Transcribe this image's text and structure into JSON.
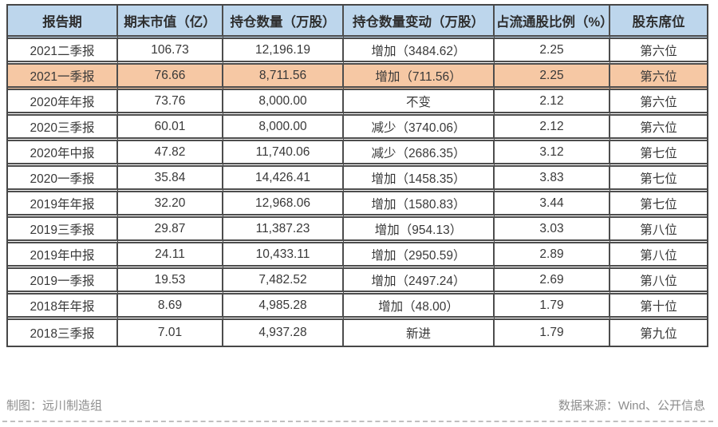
{
  "chart_data": {
    "type": "table",
    "columns": [
      "报告期",
      "期末市值（亿）",
      "持仓数量（万股）",
      "持仓数量变动（万股）",
      "占流通股比例（%）",
      "股东席位"
    ],
    "rows": [
      [
        "2021二季报",
        "106.73",
        "12,196.19",
        "增加（3484.62）",
        "2.25",
        "第六位"
      ],
      [
        "2021一季报",
        "76.66",
        "8,711.56",
        "增加（711.56）",
        "2.25",
        "第六位"
      ],
      [
        "2020年年报",
        "73.76",
        "8,000.00",
        "不变",
        "2.12",
        "第六位"
      ],
      [
        "2020三季报",
        "60.01",
        "8,000.00",
        "减少（3740.06）",
        "2.12",
        "第六位"
      ],
      [
        "2020年中报",
        "47.82",
        "11,740.06",
        "减少（2686.35）",
        "3.12",
        "第七位"
      ],
      [
        "2020一季报",
        "35.84",
        "14,426.41",
        "增加（1458.35）",
        "3.83",
        "第七位"
      ],
      [
        "2019年年报",
        "32.20",
        "12,968.06",
        "增加（1580.83）",
        "3.44",
        "第七位"
      ],
      [
        "2019三季报",
        "29.87",
        "11,387.23",
        "增加（954.13）",
        "3.03",
        "第八位"
      ],
      [
        "2019年中报",
        "24.11",
        "10,433.11",
        "增加（2950.59）",
        "2.89",
        "第八位"
      ],
      [
        "2019一季报",
        "19.53",
        "7,482.52",
        "增加（2497.24）",
        "2.69",
        "第八位"
      ],
      [
        "2018年年报",
        "8.69",
        "4,985.28",
        "增加（48.00）",
        "1.79",
        "第十位"
      ],
      [
        "2018三季报",
        "7.01",
        "4,937.28",
        "新进",
        "1.79",
        "第九位"
      ]
    ],
    "highlight_row_index": 1,
    "legend_position": "none",
    "grid": "all-borders"
  },
  "footer": {
    "credit": "制图：远川制造组",
    "source": "数据来源：Wind、公开信息"
  },
  "colors": {
    "header_bg": "#BDD6EC",
    "highlight_bg": "#F6C8A4",
    "border": "#4d4d4d",
    "cell_text": "#383838",
    "footer_text": "#8d8d8d",
    "dashed_divider": "#bfbfbf"
  }
}
